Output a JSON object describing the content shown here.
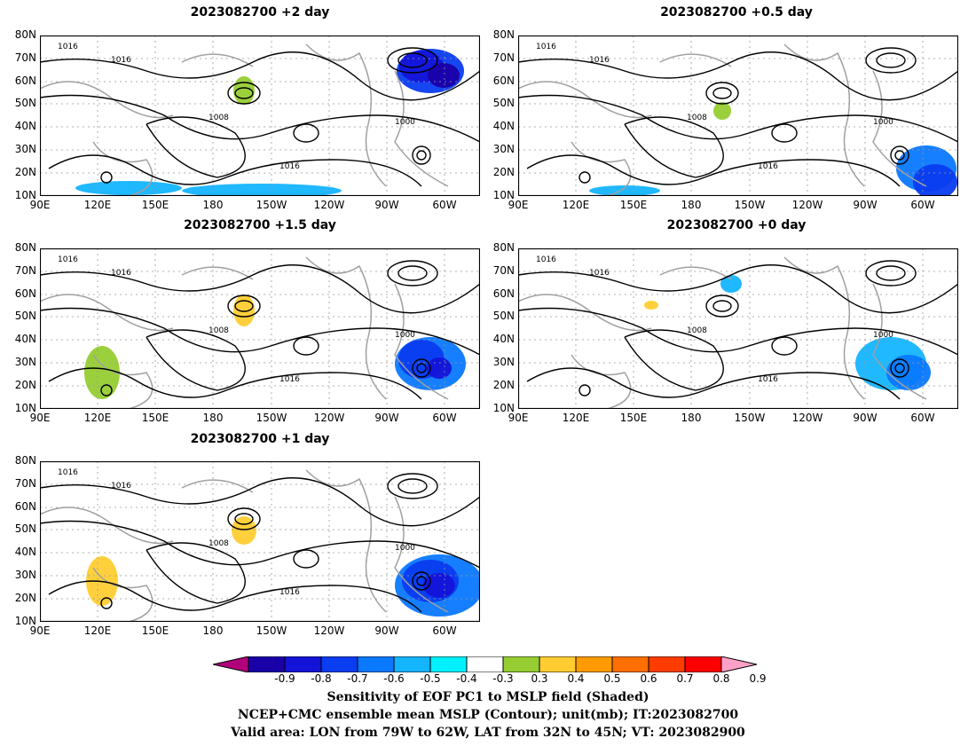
{
  "panels": [
    {
      "title": "2023082700  +2 day"
    },
    {
      "title": "2023082700  +0.5 day"
    },
    {
      "title": "2023082700  +1.5 day"
    },
    {
      "title": "2023082700  +0 day"
    },
    {
      "title": "2023082700  +1 day"
    }
  ],
  "axes": {
    "lat_labels": [
      "80N",
      "70N",
      "60N",
      "50N",
      "40N",
      "30N",
      "20N",
      "10N"
    ],
    "lon_labels": [
      "90E",
      "120E",
      "150E",
      "180",
      "150W",
      "120W",
      "90W",
      "60W"
    ]
  },
  "contour_labels": {
    "isobars": [
      "1000",
      "1008",
      "1016"
    ]
  },
  "colorbar": {
    "labels": [
      "-0.9",
      "-0.8",
      "-0.7",
      "-0.6",
      "-0.5",
      "-0.4",
      "-0.3",
      "0.3",
      "0.4",
      "0.5",
      "0.6",
      "0.7",
      "0.8",
      "0.9"
    ],
    "colors": [
      "#b0007a",
      "#1a00a8",
      "#1414d8",
      "#0a3cf0",
      "#0a78ff",
      "#14b4ff",
      "#00f0ff",
      "#ffffff",
      "#96cd32",
      "#ffcd32",
      "#ff9b00",
      "#ff6e00",
      "#ff3c00",
      "#ff0000",
      "#ffa0c8"
    ]
  },
  "captions": {
    "line1": "Sensitivity of EOF PC1 to MSLP field (Shaded)",
    "line2": "NCEP+CMC ensemble mean MSLP (Contour); unit(mb); IT:2023082700",
    "line3": "Valid area: LON from 79W to 62W, LAT from 32N to 45N; VT: 2023082900"
  }
}
